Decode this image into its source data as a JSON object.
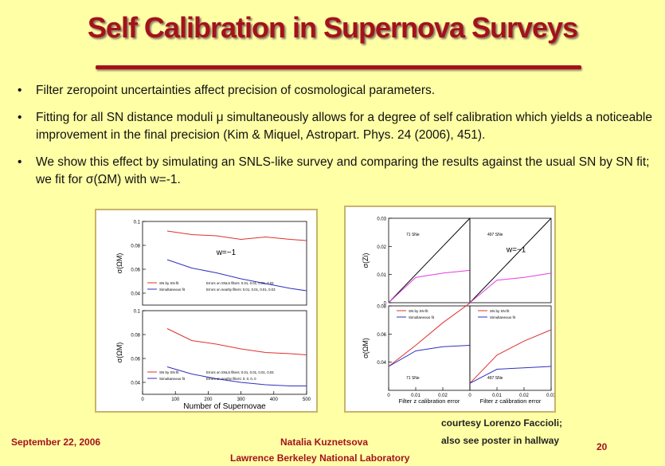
{
  "slide": {
    "title": "Self Calibration in Supernova Surveys",
    "bullets": [
      "Filter zeropoint uncertainties affect precision of cosmological parameters.",
      "Fitting for all SN distance moduli μ simultaneously allows for a degree of self calibration which yields a noticeable improvement in the final precision (Kim & Miquel, Astropart. Phys. 24 (2006), 451).",
      "We show this effect by simulating an SNLS-like survey and comparing the results against the usual SN by SN fit; we fit for σ(ΩM) with w=-1."
    ],
    "credit_line1": "courtesy Lorenzo Faccioli;",
    "credit_line2": "also see poster in hallway"
  },
  "footer": {
    "date": "September 22, 2006",
    "author": "Natalia Kuznetsova",
    "lab": "Lawrence Berkeley National Laboratory",
    "page": "20"
  },
  "colors": {
    "accent": "#a3121c",
    "background": "#ffffa6",
    "sn_by_sn": "#e03030",
    "simultaneous": "#3030c0",
    "magenta": "#e040e0"
  },
  "chart_data": [
    {
      "type": "line",
      "panel": "left-top",
      "x": [
        75,
        150,
        225,
        300,
        375,
        450,
        500
      ],
      "series": [
        {
          "name": "SN by SN fit",
          "values": [
            0.092,
            0.089,
            0.088,
            0.085,
            0.087,
            0.085,
            0.084
          ]
        },
        {
          "name": "Simultaneous fit",
          "values": [
            0.068,
            0.061,
            0.057,
            0.052,
            0.048,
            0.044,
            0.042
          ]
        }
      ],
      "xlim": [
        0,
        500
      ],
      "ylim": [
        0.03,
        0.1
      ],
      "yticks": [
        "0.04",
        "0.06",
        "0.08",
        "0.1"
      ],
      "ylabel": "σ(ΩM)",
      "annotation": "w=−1",
      "legend_notes": [
        "Errors on SNLS filters: 0.01, 0.01, 0.01, 0.03",
        "Errors on nearby filters: 0.01, 0.01, 0.01, 0.03"
      ]
    },
    {
      "type": "line",
      "panel": "left-bottom",
      "x": [
        75,
        150,
        225,
        300,
        375,
        450,
        500
      ],
      "series": [
        {
          "name": "SN by SN fit",
          "values": [
            0.085,
            0.075,
            0.072,
            0.068,
            0.065,
            0.064,
            0.063
          ]
        },
        {
          "name": "Simultaneous fit",
          "values": [
            0.053,
            0.047,
            0.043,
            0.04,
            0.038,
            0.037,
            0.037
          ]
        }
      ],
      "xlim": [
        0,
        500
      ],
      "ylim": [
        0.03,
        0.1
      ],
      "xticks": [
        "0",
        "100",
        "200",
        "300",
        "400",
        "500"
      ],
      "yticks": [
        "0.04",
        "0.06",
        "0.08",
        "0.1"
      ],
      "ylabel": "σ(ΩM)",
      "xlabel": "Number of Supernovae",
      "legend_notes": [
        "Errors on SNLS filters: 0.01, 0.01, 0.01, 0.03",
        "Errors on nearby filters: 0, 0, 0, 0"
      ]
    },
    {
      "type": "line",
      "panel": "right-top-left",
      "label": "71 SNe",
      "x": [
        0,
        0.01,
        0.02,
        0.03
      ],
      "series": [
        {
          "name": "diagonal",
          "values": [
            0,
            0.01,
            0.02,
            0.03
          ]
        },
        {
          "name": "sigma",
          "values": [
            0,
            0.009,
            0.0105,
            0.0115
          ]
        }
      ],
      "xlim": [
        0,
        0.03
      ],
      "ylim": [
        0,
        0.03
      ],
      "yticks": [
        "0",
        "0.01",
        "0.02",
        "0.03"
      ],
      "ylabel": "σ(Zi)"
    },
    {
      "type": "line",
      "panel": "right-top-right",
      "label": "497 SNe",
      "annotation": "w=−1",
      "x": [
        0,
        0.01,
        0.02,
        0.03
      ],
      "series": [
        {
          "name": "diagonal",
          "values": [
            0,
            0.01,
            0.02,
            0.03
          ]
        },
        {
          "name": "sigma",
          "values": [
            0,
            0.008,
            0.009,
            0.0105
          ]
        }
      ],
      "xlim": [
        0,
        0.03
      ],
      "ylim": [
        0,
        0.03
      ]
    },
    {
      "type": "line",
      "panel": "right-bottom-left",
      "label": "71 SNe",
      "x": [
        0,
        0.01,
        0.02,
        0.03
      ],
      "series": [
        {
          "name": "SN by SN fit",
          "values": [
            0.037,
            0.052,
            0.068,
            0.082
          ]
        },
        {
          "name": "Simultaneous fit",
          "values": [
            0.037,
            0.048,
            0.051,
            0.052
          ]
        }
      ],
      "xlim": [
        0,
        0.03
      ],
      "ylim": [
        0.02,
        0.08
      ],
      "yticks": [
        "0.04",
        "0.06",
        "0.08"
      ],
      "xticks": [
        "0",
        "0.01",
        "0.02"
      ],
      "ylabel": "σ(ΩM)",
      "xlabel": "Filter z calibration error"
    },
    {
      "type": "line",
      "panel": "right-bottom-right",
      "label": "497 SNe",
      "x": [
        0,
        0.01,
        0.02,
        0.03
      ],
      "series": [
        {
          "name": "SN by SN fit",
          "values": [
            0.025,
            0.045,
            0.055,
            0.063
          ]
        },
        {
          "name": "Simultaneous fit",
          "values": [
            0.025,
            0.035,
            0.036,
            0.037
          ]
        }
      ],
      "xlim": [
        0,
        0.03
      ],
      "ylim": [
        0.02,
        0.08
      ],
      "xticks": [
        "0",
        "0.01",
        "0.02",
        "0.03"
      ],
      "xlabel": "Filter z calibration error"
    }
  ]
}
